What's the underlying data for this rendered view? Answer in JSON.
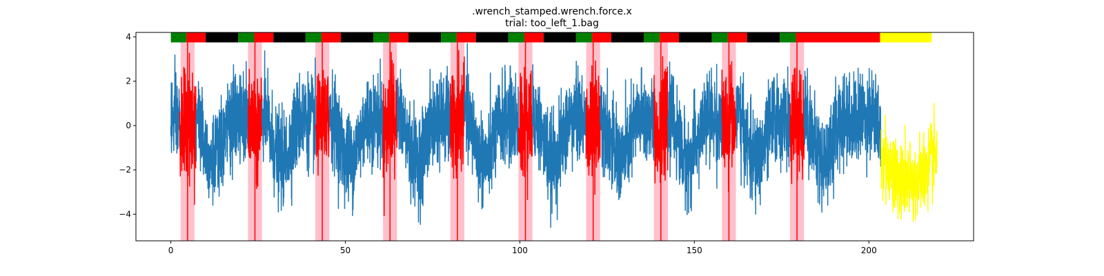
{
  "chart_data": {
    "type": "line",
    "title": ".wrench_stamped.wrench.force.x",
    "subtitle": "trial: too_left_1.bag",
    "xlabel": "",
    "ylabel": "",
    "xlim": [
      -10,
      230
    ],
    "ylim": [
      -5.2,
      4.2
    ],
    "xticks": [
      0,
      50,
      100,
      150,
      200
    ],
    "yticks": [
      -4,
      -2,
      0,
      2,
      4
    ],
    "grid": false,
    "legend": "none",
    "colors": {
      "signal": "#1f77b4",
      "highlight": "#ff0000",
      "tail": "#ffff00",
      "band": "#ffc0cb",
      "marker_line": "#ff0000",
      "phase_green": "#008000",
      "phase_red": "#ff0000",
      "phase_black": "#000000",
      "phase_yellow": "#ffff00"
    },
    "signal_range": [
      0,
      203.5
    ],
    "tail_range": [
      203.5,
      219.5
    ],
    "cycles": [
      {
        "band": [
          2.8,
          6.8
        ],
        "marker": 4.8,
        "red_segment": [
          2.6,
          7.2
        ],
        "phase_green": [
          0,
          4.5
        ],
        "phase_red": [
          4.5,
          10
        ],
        "phase_black": [
          10,
          19.3
        ]
      },
      {
        "band": [
          22.1,
          26.1
        ],
        "marker": 24.1,
        "red_segment": [
          22.1,
          26.1
        ],
        "phase_green": [
          19.3,
          23.9
        ],
        "phase_red": [
          23.9,
          29.4
        ],
        "phase_black": [
          29.4,
          38.6
        ]
      },
      {
        "band": [
          41.4,
          45.4
        ],
        "marker": 43.4,
        "red_segment": [
          41.4,
          45.4
        ],
        "phase_green": [
          38.6,
          43.2
        ],
        "phase_red": [
          43.2,
          48.7
        ],
        "phase_black": [
          48.7,
          58
        ]
      },
      {
        "band": [
          60.8,
          64.8
        ],
        "marker": 62.8,
        "red_segment": [
          60.8,
          64.8
        ],
        "phase_green": [
          58,
          62.6
        ],
        "phase_red": [
          62.6,
          68.1
        ],
        "phase_black": [
          68.1,
          77.4
        ]
      },
      {
        "band": [
          80.1,
          84.1
        ],
        "marker": 82.1,
        "red_segment": [
          80.1,
          84.1
        ],
        "phase_green": [
          77.4,
          81.9
        ],
        "phase_red": [
          81.9,
          87.4
        ],
        "phase_black": [
          87.4,
          96.7
        ]
      },
      {
        "band": [
          99.6,
          103.6
        ],
        "marker": 101.6,
        "red_segment": [
          99.6,
          103.6
        ],
        "phase_green": [
          96.7,
          101.3
        ],
        "phase_red": [
          101.3,
          106.8
        ],
        "phase_black": [
          106.8,
          116.1
        ]
      },
      {
        "band": [
          119,
          123
        ],
        "marker": 121,
        "red_segment": [
          119,
          123
        ],
        "phase_green": [
          116.1,
          120.7
        ],
        "phase_red": [
          120.7,
          126.2
        ],
        "phase_black": [
          126.2,
          135.5
        ]
      },
      {
        "band": [
          138.4,
          142.4
        ],
        "marker": 140.4,
        "red_segment": [
          138.4,
          142.4
        ],
        "phase_green": [
          135.5,
          140.1
        ],
        "phase_red": [
          140.1,
          145.6
        ],
        "phase_black": [
          145.6,
          155
        ]
      },
      {
        "band": [
          157.9,
          161.9
        ],
        "marker": 159.9,
        "red_segment": [
          157.9,
          161.9
        ],
        "phase_green": [
          155,
          159.6
        ],
        "phase_red": [
          159.6,
          165.1
        ],
        "phase_black": [
          165.1,
          174.5
        ]
      },
      {
        "band": [
          177.4,
          181.4
        ],
        "marker": 179.4,
        "red_segment": [
          177.4,
          181.4
        ],
        "phase_green": [
          174.5,
          179.1
        ],
        "phase_red": [
          179.1,
          203.2
        ],
        "phase_black": null
      }
    ],
    "phase_yellow": [
      203.2,
      218
    ],
    "phase_bar_y": [
      3.75,
      4.2
    ]
  }
}
